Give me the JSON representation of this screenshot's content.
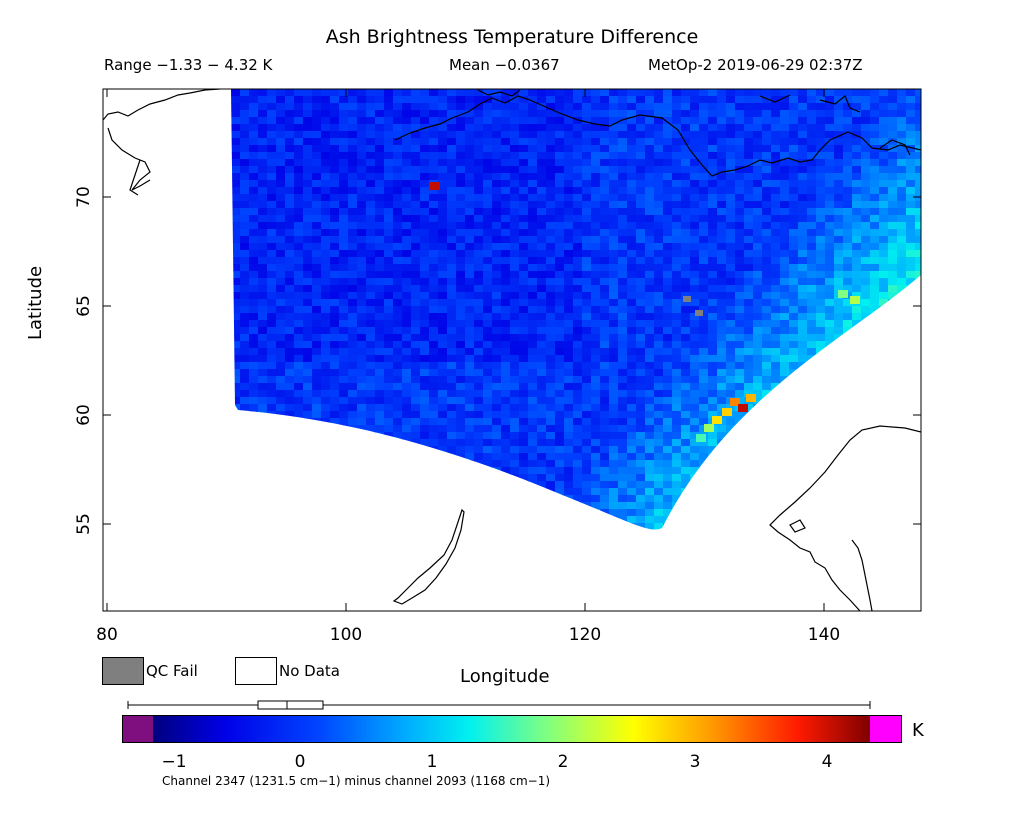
{
  "header": {
    "title": "Ash Brightness Temperature Difference",
    "range": "Range −1.33 − 4.32 K",
    "mean": "Mean −0.0367",
    "satellite": "MetOp-2 2019-06-29 02:37Z"
  },
  "axes": {
    "xlabel": "Longitude",
    "ylabel": "Latitude",
    "x_ticks": [
      "80",
      "100",
      "120",
      "140"
    ],
    "y_ticks": [
      "70",
      "65",
      "60",
      "55"
    ],
    "x_range": [
      80,
      147.5
    ],
    "y_range": [
      50.8,
      75
    ]
  },
  "legend": {
    "qc_fail": "QC Fail",
    "no_data": "No Data",
    "qc_fail_color": "#7f7f7f",
    "no_data_color": "#ffffff"
  },
  "colorbar": {
    "unit": "K",
    "ticks": [
      "−1",
      "0",
      "1",
      "2",
      "3",
      "4"
    ],
    "min": -1.33,
    "max": 4.32,
    "under_color": "#7f0f7f",
    "over_color": "#ff00ff",
    "caption": "Channel 2347 (1231.5 cm−1) minus channel 2093 (1168 cm−1)",
    "boxplot_marker": "summary-boxplot"
  }
}
